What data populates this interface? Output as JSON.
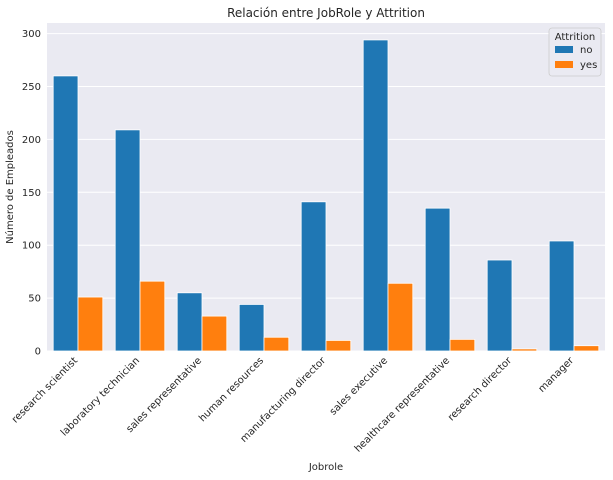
{
  "chart_data": {
    "type": "bar",
    "title": "Relación entre JobRole y Attrition",
    "xlabel": "Jobrole",
    "ylabel": "Número de Empleados",
    "categories": [
      "research scientist",
      "laboratory technician",
      "sales representative",
      "human resources",
      "manufacturing director",
      "sales executive",
      "healthcare representative",
      "research director",
      "manager"
    ],
    "series": [
      {
        "name": "no",
        "color": "#1f77b4",
        "values": [
          260,
          209,
          55,
          44,
          141,
          294,
          135,
          86,
          104
        ]
      },
      {
        "name": "yes",
        "color": "#ff7f0e",
        "values": [
          51,
          66,
          33,
          13,
          10,
          64,
          11,
          2,
          5
        ]
      }
    ],
    "ylim": [
      0,
      310
    ],
    "yticks": [
      0,
      50,
      100,
      150,
      200,
      250,
      300
    ],
    "grid": true,
    "legend": {
      "title": "Attrition",
      "placement": "top-right"
    }
  }
}
